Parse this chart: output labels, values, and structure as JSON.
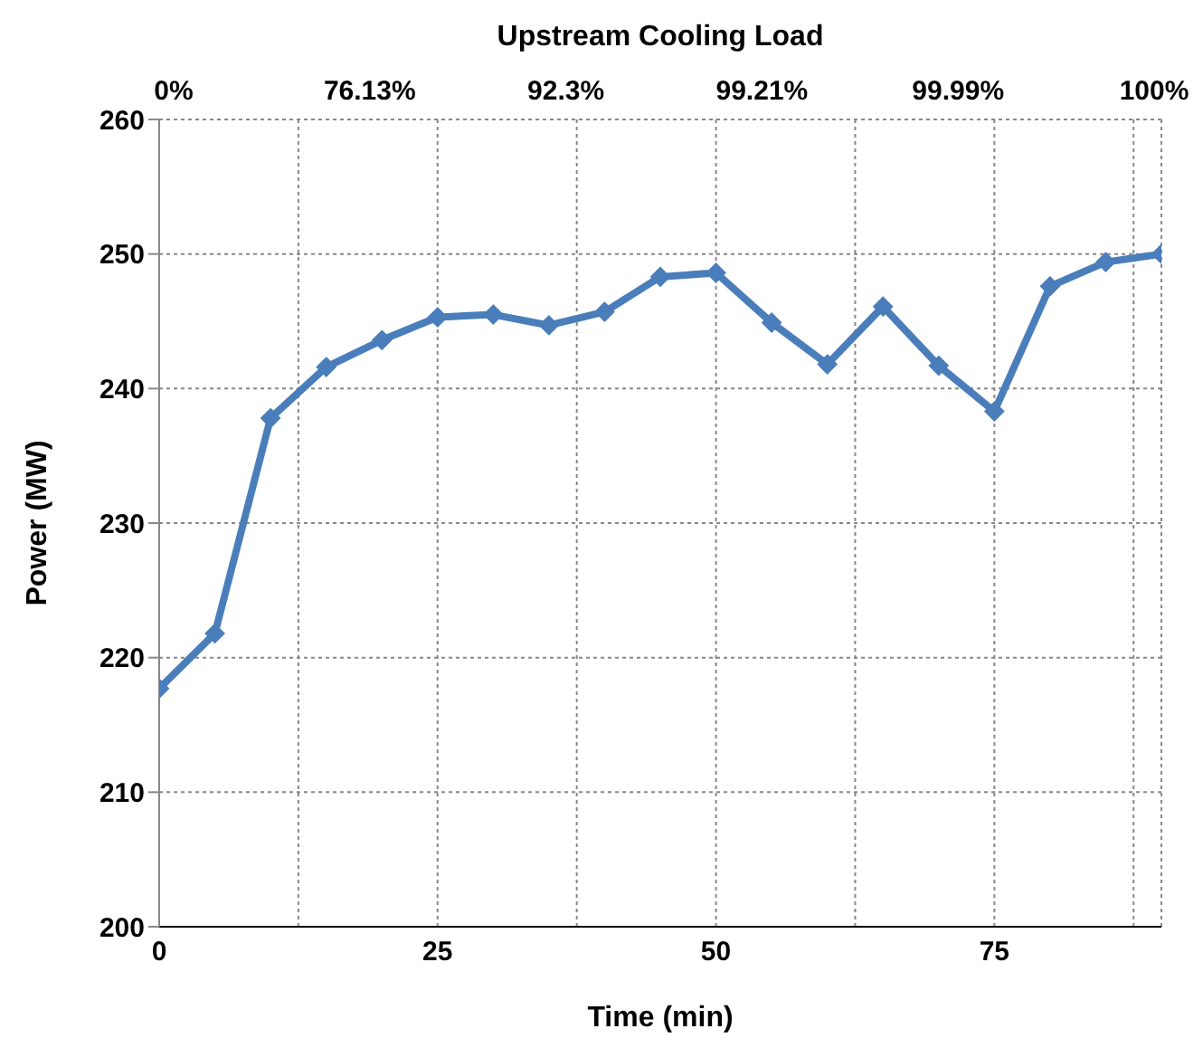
{
  "chart_data": {
    "type": "line",
    "title": "Upstream Cooling Load",
    "xlabel": "Time (min)",
    "ylabel": "Power (MW)",
    "x": [
      0,
      5,
      10,
      15,
      20,
      25,
      30,
      35,
      40,
      45,
      50,
      55,
      60,
      65,
      70,
      75,
      80,
      85,
      90
    ],
    "series": [
      {
        "color": "#4a7ebb",
        "values": [
          217.7,
          221.8,
          237.8,
          241.6,
          243.6,
          245.3,
          245.5,
          244.7,
          245.7,
          248.3,
          248.6,
          244.9,
          241.8,
          246.1,
          241.7,
          238.3,
          247.6,
          249.4,
          250.0
        ]
      }
    ],
    "annotations": [
      "0%",
      "76.13%",
      "92.3%",
      "99.21%",
      "99.99%",
      "100%"
    ],
    "xlim": [
      0,
      90
    ],
    "xticks": [
      0,
      {
        "value": 12.5,
        "label": null
      },
      25,
      {
        "value": 37.5,
        "label": null
      },
      50,
      {
        "value": 62.5,
        "label": null
      },
      75,
      {
        "value": 87.5,
        "label": null
      }
    ],
    "ylim": [
      200,
      260
    ],
    "yticks": [
      200,
      210,
      220,
      230,
      240,
      250,
      260
    ],
    "grid": true,
    "marker": "diamond",
    "line_style": "solid"
  }
}
